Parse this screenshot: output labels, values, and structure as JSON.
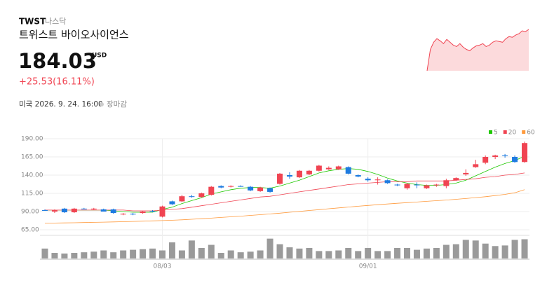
{
  "header": {
    "ticker": "TWST",
    "exchange": "나스닥",
    "name": "트위스트 바이오사이언스",
    "price": "184.03",
    "currency": "USD",
    "change": "+25.53(16.11%)",
    "time": "미국 2026. 9. 24. 16:00",
    "status": "장마감"
  },
  "sparkline": {
    "color": "#f04452",
    "values": [
      0,
      30,
      40,
      45,
      42,
      38,
      44,
      40,
      36,
      34,
      38,
      33,
      30,
      28,
      32,
      35,
      36,
      38,
      34,
      36,
      40,
      42,
      41,
      40,
      45,
      48,
      47,
      50,
      52,
      56,
      55,
      58
    ]
  },
  "chart_data": {
    "type": "candlestick",
    "categories": [
      null,
      null,
      null,
      null,
      null,
      null,
      null,
      null,
      null,
      null,
      null,
      null,
      "08/03",
      null,
      null,
      null,
      null,
      null,
      null,
      null,
      null,
      null,
      null,
      null,
      null,
      null,
      null,
      null,
      null,
      null,
      null,
      null,
      null,
      "09/01",
      null,
      null,
      null,
      null,
      null,
      null,
      null,
      null,
      null,
      null,
      null,
      null,
      null,
      null,
      null,
      null
    ],
    "open": [
      92,
      90,
      94,
      89,
      94,
      93,
      93,
      93,
      86,
      87,
      88,
      91,
      83,
      104,
      104,
      111,
      110,
      113,
      125,
      124,
      125,
      124,
      118,
      122,
      128,
      140,
      137,
      141,
      146,
      148,
      148,
      151,
      140,
      135,
      133,
      133,
      127,
      122,
      127,
      122,
      126,
      125,
      133,
      141,
      151,
      157,
      165,
      167,
      165,
      158
    ],
    "high": [
      93,
      93,
      95,
      95,
      95,
      95,
      94,
      94,
      88,
      88,
      91,
      92,
      98,
      105,
      113,
      113,
      116,
      125,
      126,
      126,
      126,
      125,
      124,
      123,
      143,
      144,
      147,
      147,
      154,
      152,
      153,
      152,
      141,
      137,
      137,
      134,
      128,
      129,
      130,
      127,
      128,
      135,
      137,
      148,
      161,
      167,
      168,
      169,
      167,
      186
    ],
    "low": [
      91,
      88,
      88,
      88,
      93,
      92,
      90,
      87,
      85,
      85,
      87,
      89,
      82,
      99,
      103,
      109,
      109,
      112,
      122,
      123,
      124,
      118,
      117,
      116,
      127,
      135,
      136,
      140,
      145,
      147,
      147,
      141,
      137,
      131,
      127,
      128,
      125,
      120,
      122,
      121,
      124,
      122,
      132,
      139,
      150,
      155,
      162,
      164,
      157,
      157
    ],
    "close": [
      91,
      92,
      89,
      94,
      93,
      94,
      90,
      88,
      87,
      86,
      90,
      90,
      97,
      100,
      111,
      110,
      115,
      124,
      123,
      125,
      124,
      119,
      123,
      117,
      142,
      138,
      146,
      146,
      153,
      150,
      152,
      142,
      138,
      133,
      134,
      129,
      126,
      128,
      126,
      126,
      127,
      133,
      136,
      143,
      155,
      165,
      167,
      166,
      158,
      184.03
    ],
    "up_color": "#f04452",
    "down_color": "#1e7be0",
    "volume": [
      16,
      9,
      8,
      9,
      10,
      11,
      13,
      10,
      13,
      14,
      15,
      16,
      13,
      26,
      13,
      29,
      17,
      22,
      9,
      13,
      10,
      11,
      13,
      32,
      23,
      18,
      16,
      17,
      12,
      12,
      13,
      17,
      12,
      17,
      12,
      12,
      17,
      17,
      14,
      16,
      17,
      22,
      23,
      30,
      29,
      24,
      20,
      21,
      30,
      31
    ],
    "volume_lim": [
      0,
      35
    ],
    "volume_color": "#9a9a9a",
    "moving_averages": [
      {
        "name": "5",
        "color": "#1ec800",
        "values": [
          92,
          92,
          92,
          92,
          92,
          92,
          92,
          91,
          90,
          89,
          89,
          89,
          93,
          96,
          101,
          105,
          109,
          114,
          117,
          120,
          122,
          123,
          123,
          122,
          125,
          129,
          133,
          138,
          143,
          146,
          148,
          149,
          148,
          145,
          141,
          136,
          132,
          129,
          127,
          126,
          126,
          127,
          129,
          133,
          139,
          145,
          151,
          156,
          160,
          166
        ]
      },
      {
        "name": "20",
        "color": "#f04452",
        "values": [
          92,
          92,
          92,
          92,
          92,
          92,
          92,
          92,
          92,
          91,
          91,
          91,
          92,
          93,
          94,
          96,
          98,
          100,
          102,
          104,
          106,
          108,
          110,
          111,
          113,
          115,
          117,
          119,
          121,
          123,
          125,
          127,
          128,
          129,
          130,
          131,
          131,
          131,
          132,
          132,
          132,
          132,
          133,
          134,
          135,
          137,
          138,
          140,
          141,
          143
        ]
      },
      {
        "name": "60",
        "color": "#ff9a3c",
        "values": [
          74,
          74.2,
          74.4,
          74.6,
          74.9,
          75.2,
          75.5,
          75.8,
          76.1,
          76.4,
          76.8,
          77.2,
          77.6,
          78.1,
          78.7,
          79.4,
          80.2,
          81,
          81.9,
          82.8,
          83.7,
          84.7,
          85.7,
          86.7,
          87.8,
          89,
          90.2,
          91.4,
          92.6,
          93.8,
          95,
          96.2,
          97.3,
          98.4,
          99.4,
          100.4,
          101.3,
          102.2,
          103.1,
          104,
          104.9,
          105.8,
          106.8,
          107.9,
          109.1,
          110.4,
          111.9,
          113.6,
          115.8,
          120
        ]
      }
    ],
    "ylim": [
      65,
      190
    ],
    "yticks": [
      {
        "value": 65,
        "label": "65.00"
      },
      {
        "value": 90,
        "label": "90.00"
      },
      {
        "value": 115,
        "label": "115.00"
      },
      {
        "value": 140,
        "label": "140.00"
      },
      {
        "value": 165,
        "label": "165.00"
      },
      {
        "value": 190,
        "label": "190.00"
      }
    ],
    "grid": true
  }
}
